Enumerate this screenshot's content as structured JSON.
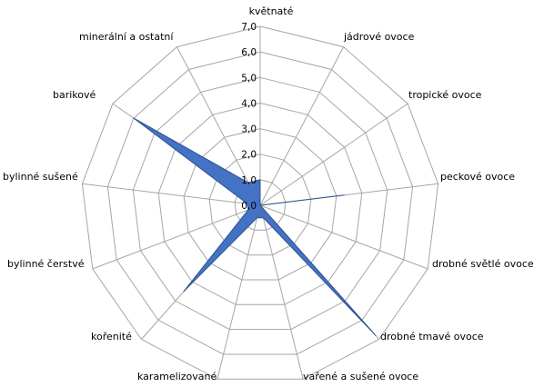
{
  "chart_data": {
    "type": "radar",
    "title": "",
    "categories": [
      "květnaté",
      "jádrové ovoce",
      "tropické ovoce",
      "peckové ovoce",
      "drobné světlé ovoce",
      "drobné tmavé ovoce",
      "vařené a sušené ovoce",
      "karamelizované",
      "kořenité",
      "bylinné čerstvé",
      "bylinné sušené",
      "barikové",
      "minerální a ostatní"
    ],
    "r_ticks": [
      "0,0",
      "1,0",
      "2,0",
      "3,0",
      "4,0",
      "5,0",
      "6,0",
      "7,0"
    ],
    "rlim": [
      0,
      7
    ],
    "series": [
      {
        "values": [
          1.0,
          0.0,
          0.0,
          3.3,
          0.0,
          6.8,
          0.5,
          0.5,
          4.5,
          0.5,
          0.5,
          6.0,
          1.0
        ],
        "color": "#4472C4"
      }
    ],
    "grid": true,
    "legend": "none"
  }
}
